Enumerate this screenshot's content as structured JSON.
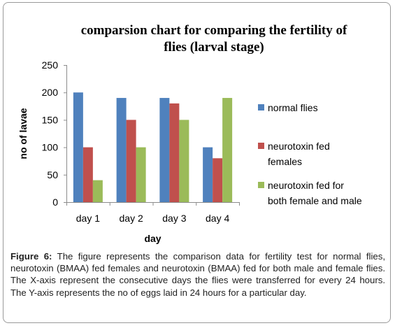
{
  "chart_data": {
    "type": "bar",
    "title_line1": "comparsion  chart for comparing the fertility of",
    "title_line2": "flies (larval stage)",
    "xlabel": "day",
    "ylabel": "no of lavae",
    "ylim": [
      0,
      250
    ],
    "yticks": [
      "0",
      "50",
      "100",
      "150",
      "200",
      "250"
    ],
    "categories": [
      "day 1",
      "day 2",
      "day 3",
      "day 4"
    ],
    "grid": false,
    "legend_position": "right",
    "series": [
      {
        "name": "normal flies",
        "legend_lines": [
          "normal flies"
        ],
        "color": "#4F81BD",
        "values": [
          200,
          190,
          190,
          100
        ]
      },
      {
        "name": "neurotoxin fed females",
        "legend_lines": [
          "neurotoxin fed",
          "females"
        ],
        "color": "#C0504D",
        "values": [
          100,
          150,
          180,
          80
        ]
      },
      {
        "name": "neurotoxin fed for both female and male",
        "legend_lines": [
          "neurotoxin fed for",
          "both female and male"
        ],
        "color": "#9BBB59",
        "values": [
          40,
          100,
          150,
          190
        ]
      }
    ]
  },
  "caption": {
    "label": "Figure 6:",
    "text": " The figure represents the comparison data for fertility test for normal flies, neurotoxin (BMAA) fed females and neurotoxin (BMAA) fed for both male and female flies. The X-axis represent the consecutive days the flies were transferred for every 24 hours. The Y-axis represents the no of eggs laid in 24 hours for a particular day."
  }
}
